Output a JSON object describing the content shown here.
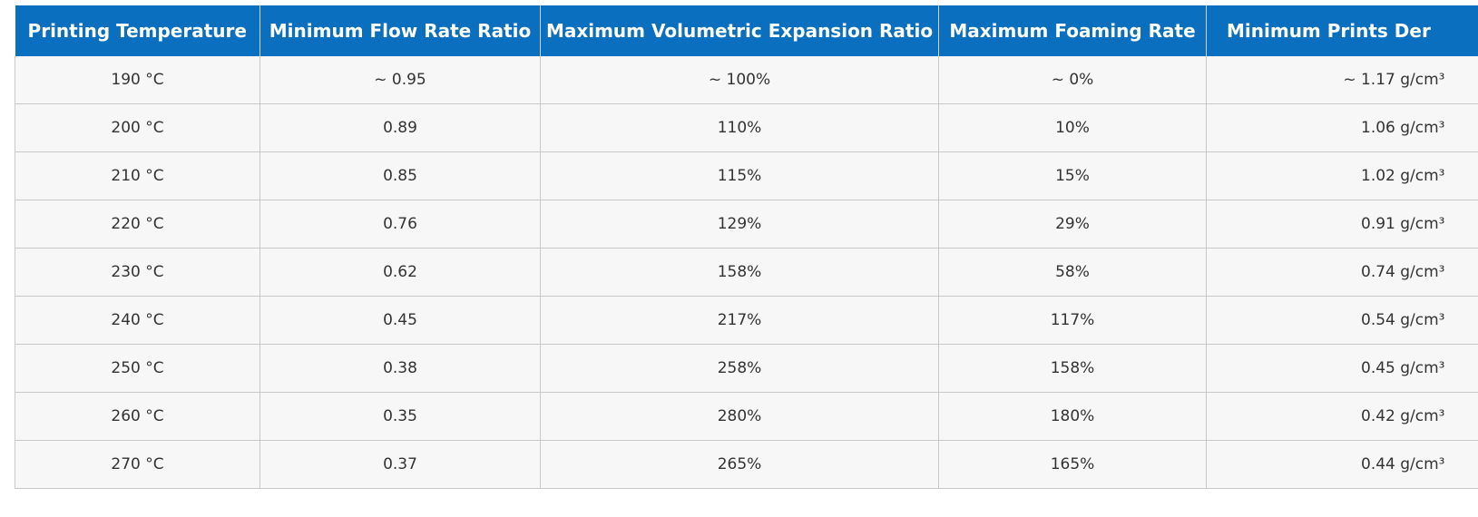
{
  "table": {
    "headers": [
      "Printing Temperature",
      "Minimum Flow Rate Ratio",
      "Maximum Volumetric Expansion Ratio",
      "Maximum Foaming Rate",
      "Minimum Prints Der"
    ],
    "rows": [
      [
        "190 °C",
        "~ 0.95",
        "~ 100%",
        "~ 0%",
        "~ 1.17 g/cm³"
      ],
      [
        "200 °C",
        "0.89",
        "110%",
        "10%",
        "1.06 g/cm³"
      ],
      [
        "210 °C",
        "0.85",
        "115%",
        "15%",
        "1.02 g/cm³"
      ],
      [
        "220 °C",
        "0.76",
        "129%",
        "29%",
        "0.91 g/cm³"
      ],
      [
        "230 °C",
        "0.62",
        "158%",
        "58%",
        "0.74 g/cm³"
      ],
      [
        "240 °C",
        "0.45",
        "217%",
        "117%",
        "0.54 g/cm³"
      ],
      [
        "250 °C",
        "0.38",
        "258%",
        "158%",
        "0.45 g/cm³"
      ],
      [
        "260 °C",
        "0.35",
        "280%",
        "180%",
        "0.42 g/cm³"
      ],
      [
        "270 °C",
        "0.37",
        "265%",
        "165%",
        "0.44 g/cm³"
      ]
    ]
  },
  "colors": {
    "header_bg": "#0a6fbe",
    "header_text": "#ffffff",
    "row_bg": "#f7f7f7",
    "cell_text": "#333333",
    "border": "#c8c8c8"
  }
}
